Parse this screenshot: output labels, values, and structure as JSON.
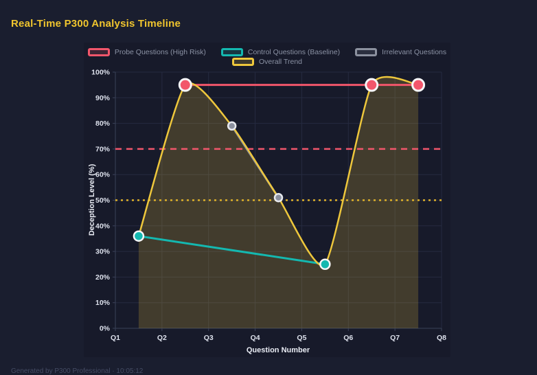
{
  "page": {
    "title": "Real-Time P300 Analysis Timeline",
    "footer": "Generated by P300 Professional · 10:05:12"
  },
  "colors": {
    "title": "#f0c52e",
    "background": "#1a1e2f",
    "grid": "#262b40",
    "axis": "#3a4158",
    "tick_text": "#dde1ec",
    "probe": "#f2566b",
    "control": "#14b8b0",
    "irrelevant": "#8c919f",
    "trend": "#eec73c"
  },
  "legend": {
    "items": [
      {
        "label": "Probe Questions (High Risk)",
        "color": "#f2566b"
      },
      {
        "label": "Control Questions (Baseline)",
        "color": "#14b8b0"
      },
      {
        "label": "Irrelevant Questions",
        "color": "#8c919f"
      },
      {
        "label": "Overall Trend",
        "color": "#eec73c"
      }
    ]
  },
  "chart_data": {
    "type": "line",
    "title": "Real-Time P300 Analysis Timeline",
    "xlabel": "Question Number",
    "ylabel": "Deception Level (%)",
    "x_ticks": [
      "Q1",
      "Q2",
      "Q3",
      "Q4",
      "Q5",
      "Q6",
      "Q7",
      "Q8"
    ],
    "x_range": [
      1,
      8
    ],
    "ylim": [
      0,
      100
    ],
    "y_ticks": [
      "0%",
      "10%",
      "20%",
      "30%",
      "40%",
      "50%",
      "60%",
      "70%",
      "80%",
      "90%",
      "100%"
    ],
    "grid": true,
    "legend_position": "top",
    "series": [
      {
        "name": "Probe Questions (High Risk)",
        "color": "#f2566b",
        "x": [
          2.5,
          6.5,
          7.5
        ],
        "y": [
          95,
          95,
          95
        ],
        "line_width": 3,
        "point_radius": 8.5,
        "point_border": "#f5f6f8",
        "smooth": false
      },
      {
        "name": "Control Questions (Baseline)",
        "color": "#14b8b0",
        "x": [
          1.5,
          5.5
        ],
        "y": [
          36,
          25
        ],
        "line_width": 3,
        "point_radius": 7,
        "point_border": "#f5f6f8",
        "smooth": false
      },
      {
        "name": "Irrelevant Questions",
        "color": "#8c919f",
        "x": [
          3.5,
          4.5
        ],
        "y": [
          79,
          51
        ],
        "line_width": 3,
        "point_radius": 5.5,
        "point_border": "#e8eaef",
        "smooth": false
      },
      {
        "name": "Overall Trend",
        "color": "#eec73c",
        "x": [
          1.5,
          2.5,
          3.5,
          4.5,
          5.5,
          6.5,
          7.5
        ],
        "y": [
          36,
          95,
          79,
          51,
          25,
          95,
          95
        ],
        "line_width": 2.5,
        "point_radius": 0,
        "smooth": true,
        "area_fill": "rgba(238,199,60,0.20)"
      }
    ],
    "thresholds": [
      {
        "value": 70,
        "color": "#f2566b",
        "dash": [
          9,
          7
        ],
        "width": 2.5
      },
      {
        "value": 50,
        "color": "#ddb02a",
        "dash": [
          3,
          5
        ],
        "width": 2.5
      }
    ]
  }
}
